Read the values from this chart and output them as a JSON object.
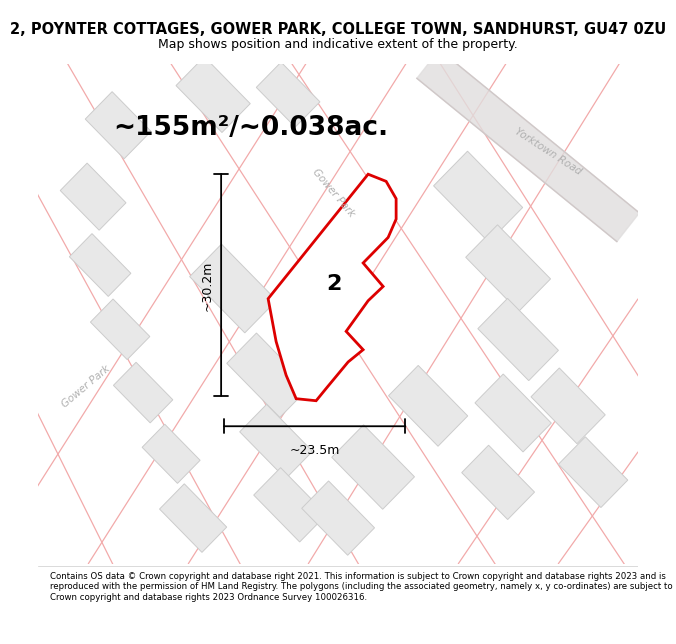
{
  "title": "2, POYNTER COTTAGES, GOWER PARK, COLLEGE TOWN, SANDHURST, GU47 0ZU",
  "subtitle": "Map shows position and indicative extent of the property.",
  "area_text": "~155m²/~0.038ac.",
  "dim_width": "~23.5m",
  "dim_height": "~30.2m",
  "label_number": "2",
  "road_label_yorktown": "Yorktown Road",
  "road_label_gower_park_diag": "Gower Park",
  "road_label_gower_park_left": "Gower Park",
  "footer": "Contains OS data © Crown copyright and database right 2021. This information is subject to Crown copyright and database rights 2023 and is reproduced with the permission of HM Land Registry. The polygons (including the associated geometry, namely x, y co-ordinates) are subject to Crown copyright and database rights 2023 Ordnance Survey 100026316.",
  "bg_color": "#faf8f8",
  "map_bg": "#faf8f8",
  "plot_fill": "#ffffff",
  "plot_edge": "#dd0000",
  "building_fill": "#e8e8e8",
  "building_edge": "#cccccc",
  "road_line_color": "#f2aaaa",
  "road_text_color": "#b0b0b0",
  "dim_line_color": "#111111",
  "title_fontsize": 10.5,
  "subtitle_fontsize": 9,
  "area_fontsize": 19,
  "label_fontsize": 16,
  "footer_fontsize": 6.2
}
